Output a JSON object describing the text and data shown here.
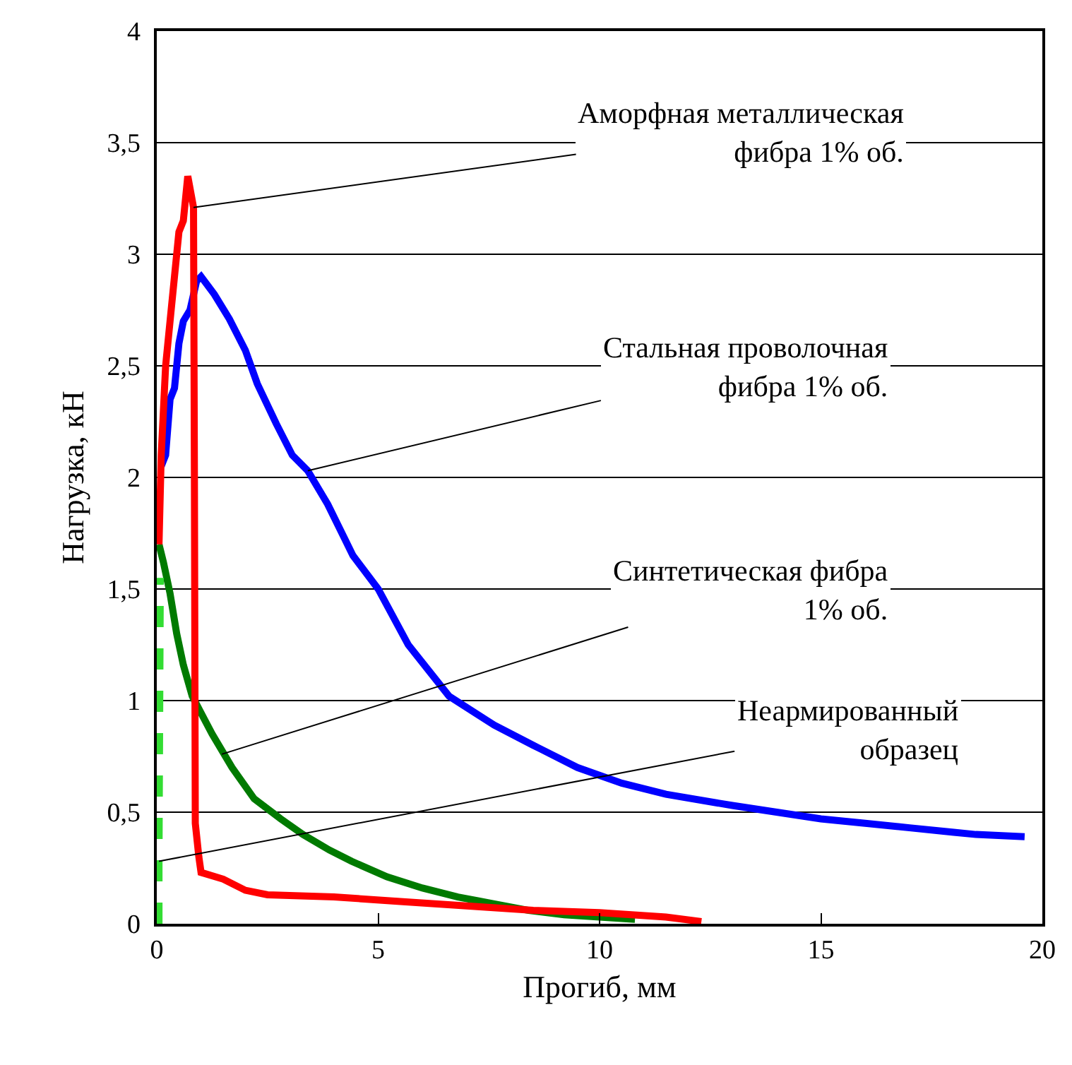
{
  "chart_data": {
    "type": "line",
    "xlabel": "Прогиб, мм",
    "ylabel": "Нагрузка, кН",
    "xlim": [
      0,
      20
    ],
    "xticks": [
      0,
      5,
      10,
      15,
      20
    ],
    "ylim": [
      0,
      4
    ],
    "yticks": [
      0,
      {
        "value": 0.5,
        "label": "0,5"
      },
      1,
      {
        "value": 1.5,
        "label": "1,5"
      },
      2,
      {
        "value": 2.5,
        "label": "2,5"
      },
      3,
      {
        "value": 3.5,
        "label": "3,5"
      },
      4
    ],
    "grid": "y",
    "marker": "none",
    "series": [
      {
        "color": "#007a00",
        "x": [
          0.05,
          0.15,
          0.3,
          0.45,
          0.6,
          0.8,
          1.25,
          1.7,
          2.2,
          2.8,
          3.3,
          3.9,
          4.4,
          5.2,
          6,
          6.8,
          7.6,
          8.4,
          9.2,
          10,
          10.8
        ],
        "values": [
          1.7,
          1.62,
          1.48,
          1.3,
          1.16,
          1.02,
          0.85,
          0.7,
          0.56,
          0.47,
          0.4,
          0.33,
          0.28,
          0.21,
          0.16,
          0.12,
          0.09,
          0.06,
          0.04,
          0.03,
          0.02
        ]
      },
      {
        "color": "#0000ff",
        "x": [
          0.1,
          0.2,
          0.3,
          0.4,
          0.5,
          0.6,
          0.75,
          0.9,
          1.0,
          1.3,
          1.64,
          2.0,
          2.27,
          2.7,
          3.06,
          3.41,
          3.86,
          4.43,
          5.0,
          5.68,
          6.6,
          7.62,
          8.5,
          9.5,
          10.5,
          11.5,
          13.0,
          14.0,
          15.0,
          16.0,
          17.0,
          18.0,
          18.5,
          19.6
        ],
        "values": [
          2.05,
          2.1,
          2.35,
          2.4,
          2.6,
          2.7,
          2.75,
          2.88,
          2.9,
          2.82,
          2.71,
          2.57,
          2.42,
          2.24,
          2.1,
          2.03,
          1.88,
          1.65,
          1.5,
          1.25,
          1.02,
          0.89,
          0.8,
          0.7,
          0.63,
          0.58,
          0.53,
          0.5,
          0.47,
          0.45,
          0.43,
          0.41,
          0.4,
          0.39
        ]
      },
      {
        "color": "#ff0000",
        "x": [
          0.05,
          0.1,
          0.2,
          0.3,
          0.4,
          0.5,
          0.6,
          0.7,
          0.83,
          0.85,
          0.87,
          0.95,
          1.0,
          1.5,
          2.0,
          2.5,
          4.0,
          5.5,
          7.0,
          8.5,
          10.0,
          11.5,
          12.3
        ],
        "values": [
          1.7,
          2.1,
          2.5,
          2.7,
          2.9,
          3.1,
          3.15,
          3.35,
          3.21,
          2.0,
          0.45,
          0.3,
          0.23,
          0.2,
          0.15,
          0.13,
          0.12,
          0.1,
          0.08,
          0.06,
          0.05,
          0.03,
          0.01
        ]
      },
      {
        "color": "#33dd33",
        "line_style": "dashed",
        "x": [
          0.05,
          0.05,
          0.08
        ],
        "values": [
          0,
          0.28,
          1.55
        ]
      }
    ],
    "annotations": [
      {
        "text": "Аморфная металлическая\nфибра 1% об.",
        "x": 0.83,
        "y": 3.21
      },
      {
        "text": "Стальная проволочная\nфибра 1% об.",
        "x": 3.41,
        "y": 2.03
      },
      {
        "text": "Синтетическая фибра\n1% об.",
        "x": 1.47,
        "y": 0.76
      },
      {
        "text": "Неармированный\nобразец",
        "x": 0.05,
        "y": 0.28
      }
    ]
  }
}
